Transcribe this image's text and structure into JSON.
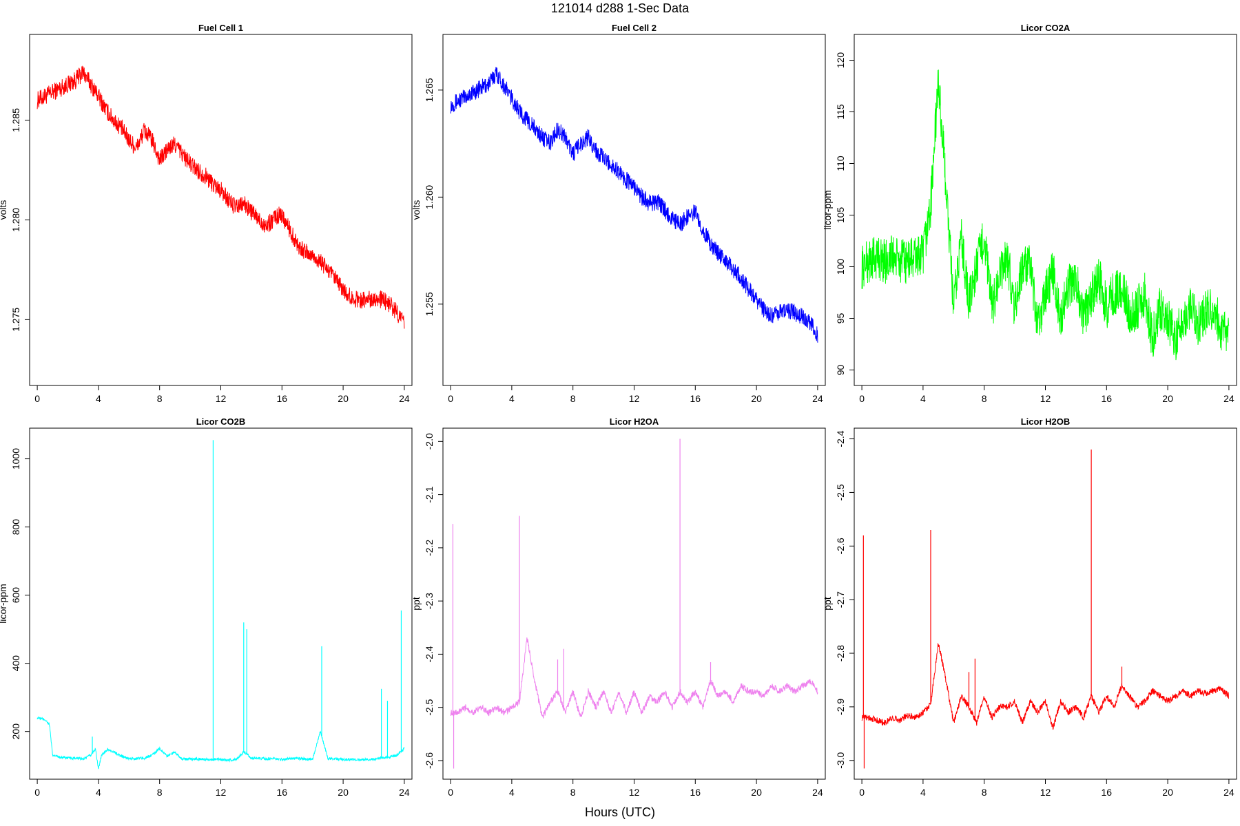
{
  "figure": {
    "title": "121014   d288   1-Sec Data",
    "xlabel": "Hours (UTC)"
  },
  "chart_data": [
    {
      "type": "line",
      "title": "Fuel Cell 1",
      "ylabel": "volts",
      "color": "#ff0000",
      "xlim": [
        -0.5,
        24.5
      ],
      "ylim": [
        1.2717,
        1.2893
      ],
      "xticks": [
        0,
        4,
        8,
        12,
        16,
        20,
        24
      ],
      "yticks": [
        1.275,
        1.28,
        1.285
      ],
      "ytick_labels": [
        "1.275",
        "1.280",
        "1.285"
      ],
      "series": [
        {
          "x": [
            0,
            0.5,
            1,
            1.5,
            2,
            2.5,
            3,
            3.5,
            4,
            4.5,
            5,
            5.5,
            6,
            6.5,
            7,
            7.5,
            8,
            8.5,
            9,
            9.5,
            10,
            10.5,
            11,
            11.5,
            12,
            12.5,
            13,
            13.5,
            14,
            14.5,
            15,
            15.5,
            16,
            16.5,
            17,
            17.5,
            18,
            18.5,
            19,
            19.5,
            20,
            20.5,
            21,
            21.5,
            22,
            22.5,
            23,
            23.5,
            24
          ],
          "y": [
            1.286,
            1.2862,
            1.2864,
            1.2866,
            1.2868,
            1.287,
            1.2874,
            1.2868,
            1.2862,
            1.2855,
            1.285,
            1.2846,
            1.284,
            1.2836,
            1.2845,
            1.284,
            1.283,
            1.2835,
            1.2838,
            1.2833,
            1.2828,
            1.2825,
            1.2822,
            1.2818,
            1.2815,
            1.281,
            1.2806,
            1.2808,
            1.2804,
            1.28,
            1.2797,
            1.2801,
            1.2803,
            1.2795,
            1.2788,
            1.2784,
            1.2782,
            1.2779,
            1.2775,
            1.277,
            1.2765,
            1.2761,
            1.276,
            1.276,
            1.2761,
            1.276,
            1.2758,
            1.2754,
            1.2748
          ],
          "noise": 0.00045
        }
      ]
    },
    {
      "type": "line",
      "title": "Fuel Cell 2",
      "ylabel": "volts",
      "color": "#0000ff",
      "xlim": [
        -0.5,
        24.5
      ],
      "ylim": [
        1.2512,
        1.2676
      ],
      "xticks": [
        0,
        4,
        8,
        12,
        16,
        20,
        24
      ],
      "yticks": [
        1.255,
        1.26,
        1.265
      ],
      "ytick_labels": [
        "1.255",
        "1.260",
        "1.265"
      ],
      "series": [
        {
          "x": [
            0,
            0.5,
            1,
            1.5,
            2,
            2.5,
            3,
            3.5,
            4,
            4.5,
            5,
            5.5,
            6,
            6.5,
            7,
            7.5,
            8,
            8.5,
            9,
            9.5,
            10,
            10.5,
            11,
            11.5,
            12,
            12.5,
            13,
            13.5,
            14,
            14.5,
            15,
            15.5,
            16,
            16.5,
            17,
            17.5,
            18,
            18.5,
            19,
            19.5,
            20,
            20.5,
            21,
            21.5,
            22,
            22.5,
            23,
            23.5,
            24
          ],
          "y": [
            1.2643,
            1.2645,
            1.2647,
            1.2649,
            1.2651,
            1.2653,
            1.2658,
            1.2652,
            1.2646,
            1.264,
            1.2636,
            1.2632,
            1.2628,
            1.2625,
            1.2632,
            1.2628,
            1.262,
            1.2625,
            1.2628,
            1.2622,
            1.2618,
            1.2615,
            1.2612,
            1.2608,
            1.2605,
            1.26,
            1.2597,
            1.2598,
            1.2594,
            1.259,
            1.2587,
            1.2591,
            1.2593,
            1.2585,
            1.2578,
            1.2574,
            1.257,
            1.2566,
            1.2562,
            1.2557,
            1.2552,
            1.2547,
            1.2545,
            1.2546,
            1.2547,
            1.2546,
            1.2544,
            1.2541,
            1.2536
          ],
          "noise": 0.0004
        }
      ]
    },
    {
      "type": "line",
      "title": "Licor CO2A",
      "ylabel": "licor-ppm",
      "color": "#00ff00",
      "xlim": [
        -0.5,
        24.5
      ],
      "ylim": [
        88.5,
        122.5
      ],
      "xticks": [
        0,
        4,
        8,
        12,
        16,
        20,
        24
      ],
      "yticks": [
        90,
        95,
        100,
        105,
        110,
        115,
        120
      ],
      "ytick_labels": [
        "90",
        "95",
        "100",
        "105",
        "110",
        "115",
        "120"
      ],
      "series": [
        {
          "x": [
            0,
            0.5,
            1,
            1.5,
            2,
            2.5,
            3,
            3.5,
            4,
            4.5,
            5,
            5.5,
            6,
            6.5,
            7,
            7.5,
            8,
            8.5,
            9,
            9.5,
            10,
            10.5,
            11,
            11.5,
            12,
            12.5,
            13,
            13.5,
            14,
            14.5,
            15,
            15.5,
            16,
            16.5,
            17,
            17.5,
            18,
            18.5,
            19,
            19.5,
            20,
            20.5,
            21,
            21.5,
            22,
            22.5,
            23,
            23.5,
            24
          ],
          "y": [
            100.0,
            100.5,
            101.0,
            100.5,
            101.0,
            100.5,
            100.5,
            101.0,
            101.0,
            106.0,
            118.0,
            108.0,
            96.0,
            103.0,
            96.5,
            100.0,
            103.0,
            96.0,
            99.0,
            101.0,
            96.0,
            100.0,
            100.0,
            94.0,
            97.5,
            99.5,
            95.0,
            98.0,
            99.0,
            95.0,
            97.0,
            99.0,
            96.0,
            97.5,
            98.0,
            95.5,
            96.0,
            97.5,
            93.0,
            96.0,
            95.0,
            93.0,
            95.0,
            96.0,
            94.5,
            95.5,
            96.0,
            94.0,
            93.0
          ],
          "noise": 2.2
        }
      ]
    },
    {
      "type": "line",
      "title": "Licor CO2B",
      "ylabel": "licor-ppm",
      "color": "#00ffff",
      "xlim": [
        -0.5,
        24.5
      ],
      "ylim": [
        60,
        1090
      ],
      "xticks": [
        0,
        4,
        8,
        12,
        16,
        20,
        24
      ],
      "yticks": [
        200,
        400,
        600,
        800,
        1000
      ],
      "ytick_labels": [
        "200",
        "400",
        "600",
        "800",
        "1000"
      ],
      "series": [
        {
          "x": [
            0,
            0.5,
            0.8,
            1,
            1.5,
            2,
            3,
            3.5,
            3.8,
            4,
            4.2,
            4.6,
            5,
            5.5,
            6,
            7,
            7.5,
            8,
            8.5,
            9,
            9.5,
            10,
            11,
            11.4,
            12,
            12.5,
            13,
            13.5,
            14,
            15,
            16,
            17,
            18,
            18.5,
            19,
            20,
            21,
            22,
            23,
            23.5,
            24
          ],
          "y": [
            240,
            235,
            220,
            130,
            125,
            122,
            120,
            130,
            150,
            90,
            130,
            148,
            140,
            128,
            120,
            122,
            130,
            150,
            128,
            140,
            118,
            120,
            118,
            118,
            118,
            115,
            118,
            140,
            122,
            120,
            118,
            121,
            118,
            200,
            122,
            118,
            117,
            119,
            125,
            130,
            150
          ],
          "noise": 4
        }
      ],
      "spikes": [
        {
          "x": 3.6,
          "y": 185
        },
        {
          "x": 11.5,
          "y": 1055
        },
        {
          "x": 13.5,
          "y": 520
        },
        {
          "x": 13.7,
          "y": 500
        },
        {
          "x": 18.6,
          "y": 450
        },
        {
          "x": 22.5,
          "y": 325
        },
        {
          "x": 22.9,
          "y": 290
        },
        {
          "x": 23.8,
          "y": 555
        }
      ]
    },
    {
      "type": "line",
      "title": "Licor H2OA",
      "ylabel": "ppt",
      "color": "#ee82ee",
      "xlim": [
        -0.5,
        24.5
      ],
      "ylim": [
        -2.635,
        -1.975
      ],
      "xticks": [
        0,
        4,
        8,
        12,
        16,
        20,
        24
      ],
      "yticks": [
        -2.6,
        -2.5,
        -2.4,
        -2.3,
        -2.2,
        -2.1,
        -2.0
      ],
      "ytick_labels": [
        "-2.6",
        "-2.5",
        "-2.4",
        "-2.3",
        "-2.2",
        "-2.1",
        "-2.0"
      ],
      "series": [
        {
          "x": [
            0,
            0.5,
            1,
            1.5,
            2,
            2.5,
            3,
            3.5,
            4,
            4.5,
            5,
            5.5,
            6,
            6.5,
            7,
            7.5,
            8,
            8.5,
            9,
            9.5,
            10,
            10.5,
            11,
            11.5,
            12,
            12.5,
            13,
            13.5,
            14,
            14.5,
            15,
            15.5,
            16,
            16.5,
            17,
            17.5,
            18,
            18.5,
            19,
            19.5,
            20,
            20.5,
            21,
            21.5,
            22,
            22.5,
            23,
            23.5,
            24
          ],
          "y": [
            -2.51,
            -2.51,
            -2.5,
            -2.51,
            -2.5,
            -2.51,
            -2.5,
            -2.51,
            -2.5,
            -2.49,
            -2.37,
            -2.45,
            -2.52,
            -2.49,
            -2.47,
            -2.51,
            -2.47,
            -2.52,
            -2.47,
            -2.5,
            -2.47,
            -2.51,
            -2.47,
            -2.51,
            -2.47,
            -2.51,
            -2.48,
            -2.49,
            -2.47,
            -2.5,
            -2.47,
            -2.49,
            -2.47,
            -2.5,
            -2.45,
            -2.48,
            -2.47,
            -2.49,
            -2.46,
            -2.47,
            -2.47,
            -2.48,
            -2.46,
            -2.47,
            -2.46,
            -2.47,
            -2.46,
            -2.45,
            -2.47
          ],
          "noise": 0.006
        }
      ],
      "spikes": [
        {
          "x": 0.15,
          "y": -2.155
        },
        {
          "x": 0.2,
          "y": -2.615
        },
        {
          "x": 4.5,
          "y": -2.14
        },
        {
          "x": 7.0,
          "y": -2.41
        },
        {
          "x": 7.4,
          "y": -2.39
        },
        {
          "x": 15.0,
          "y": -1.995
        },
        {
          "x": 17.0,
          "y": -2.415
        }
      ]
    },
    {
      "type": "line",
      "title": "Licor H2OB",
      "ylabel": "ppt",
      "color": "#ff0000",
      "xlim": [
        -0.5,
        24.5
      ],
      "ylim": [
        -3.035,
        -2.38
      ],
      "xticks": [
        0,
        4,
        8,
        12,
        16,
        20,
        24
      ],
      "yticks": [
        -3.0,
        -2.9,
        -2.8,
        -2.7,
        -2.6,
        -2.5,
        -2.4
      ],
      "ytick_labels": [
        "-3.0",
        "-2.9",
        "-2.8",
        "-2.7",
        "-2.6",
        "-2.5",
        "-2.4"
      ],
      "series": [
        {
          "x": [
            0,
            0.5,
            1,
            1.5,
            2,
            2.5,
            3,
            3.5,
            4,
            4.5,
            5,
            5.5,
            6,
            6.5,
            7,
            7.5,
            8,
            8.5,
            9,
            9.5,
            10,
            10.5,
            11,
            11.5,
            12,
            12.5,
            13,
            13.5,
            14,
            14.5,
            15,
            15.5,
            16,
            16.5,
            17,
            17.5,
            18,
            18.5,
            19,
            19.5,
            20,
            20.5,
            21,
            21.5,
            22,
            22.5,
            23,
            23.5,
            24
          ],
          "y": [
            -2.92,
            -2.92,
            -2.925,
            -2.93,
            -2.92,
            -2.925,
            -2.915,
            -2.92,
            -2.91,
            -2.895,
            -2.78,
            -2.85,
            -2.93,
            -2.88,
            -2.9,
            -2.93,
            -2.88,
            -2.92,
            -2.9,
            -2.9,
            -2.89,
            -2.93,
            -2.89,
            -2.91,
            -2.89,
            -2.94,
            -2.89,
            -2.91,
            -2.9,
            -2.92,
            -2.88,
            -2.91,
            -2.88,
            -2.9,
            -2.86,
            -2.88,
            -2.9,
            -2.89,
            -2.87,
            -2.88,
            -2.89,
            -2.88,
            -2.87,
            -2.88,
            -2.87,
            -2.875,
            -2.87,
            -2.865,
            -2.88
          ],
          "noise": 0.006
        }
      ],
      "spikes": [
        {
          "x": 0.1,
          "y": -2.58
        },
        {
          "x": 0.15,
          "y": -3.015
        },
        {
          "x": 4.5,
          "y": -2.57
        },
        {
          "x": 7.0,
          "y": -2.835
        },
        {
          "x": 7.4,
          "y": -2.81
        },
        {
          "x": 15.0,
          "y": -2.42
        },
        {
          "x": 17.0,
          "y": -2.825
        }
      ]
    }
  ]
}
